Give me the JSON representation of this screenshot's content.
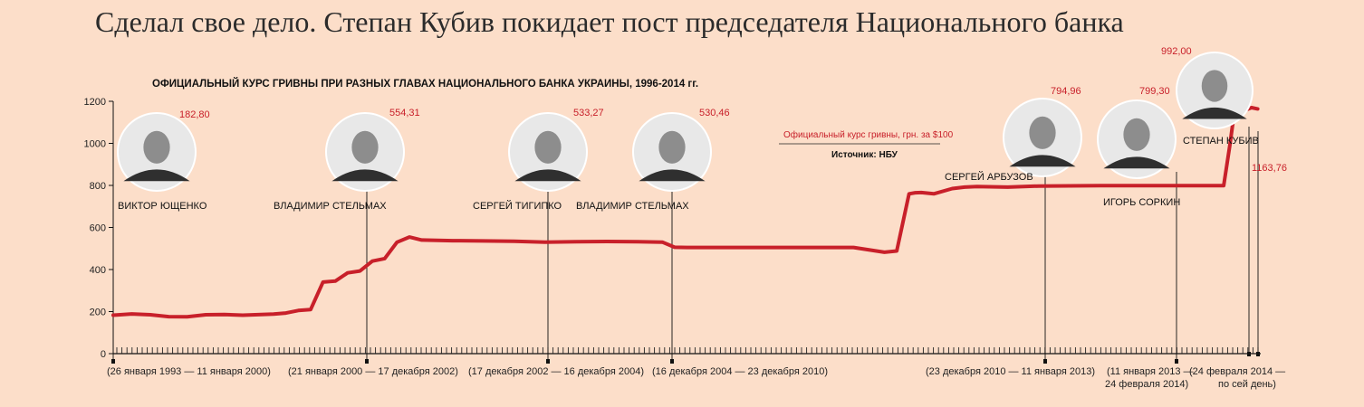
{
  "headline": "Сделал свое дело. Степан Кубив покидает пост председателя Национального банка",
  "colors": {
    "background": "#fcdec9",
    "line": "#c8202a",
    "text": "#222222",
    "axis": "#111111"
  },
  "chart_data": {
    "type": "line",
    "title": "ОФИЦИАЛЬНЫЙ КУРС ГРИВНЫ ПРИ РАЗНЫХ ГЛАВАХ НАЦИОНАЛЬНОГО БАНКА УКРАИНЫ, 1996-2014 гг.",
    "legend": "Официальный курс гривны, грн. за $100",
    "source": "Источник: НБУ",
    "ylim": [
      0,
      1200
    ],
    "yticks": [
      0,
      200,
      400,
      600,
      800,
      1000,
      1200
    ],
    "xlim": [
      1996.0,
      2014.6
    ],
    "grid": false,
    "series": [
      {
        "name": "Официальный курс гривны, грн. за $100",
        "x": [
          1996.0,
          1996.3,
          1996.6,
          1996.9,
          1997.2,
          1997.5,
          1997.8,
          1998.1,
          1998.4,
          1998.6,
          1998.8,
          1999.0,
          1999.2,
          1999.4,
          1999.6,
          1999.8,
          2000.0,
          2000.2,
          2000.4,
          2000.6,
          2000.8,
          2001.0,
          2001.5,
          2002.0,
          2002.5,
          2003.0,
          2003.5,
          2004.0,
          2004.5,
          2004.9,
          2005.1,
          2005.3,
          2006.0,
          2007.0,
          2008.0,
          2008.5,
          2008.7,
          2008.9,
          2009.0,
          2009.1,
          2009.3,
          2009.6,
          2009.8,
          2010.0,
          2010.5,
          2011.0,
          2012.0,
          2013.0,
          2014.0,
          2014.1,
          2014.15,
          2014.25,
          2014.35,
          2014.45,
          2014.55
        ],
        "y": [
          182.8,
          189,
          185,
          176,
          175,
          185,
          186,
          183,
          186,
          188,
          193,
          205,
          210,
          340,
          345,
          384,
          393,
          440,
          452,
          530,
          554.31,
          540,
          537,
          536,
          534,
          530,
          532,
          533.27,
          532,
          530.46,
          506,
          505,
          505,
          505,
          505,
          482,
          488,
          760,
          765,
          766,
          760,
          785,
          792,
          794.96,
          792,
          797,
          799,
          799.3,
          799.3,
          992,
          1100,
          1160,
          1158,
          1170,
          1163.76
        ]
      }
    ],
    "heads": [
      {
        "name": "ВИКТОР ЮЩЕНКО",
        "value": "182,80",
        "period": "(26 января 1993 — 11 января 2000)"
      },
      {
        "name": "ВЛАДИМИР СТЕЛЬМАХ",
        "value": "554,31",
        "period": "(21 января 2000 — 17 декабря 2002)"
      },
      {
        "name": "СЕРГЕЙ ТИГИПКО",
        "value": "533,27",
        "period": "(17 декабря 2002 — 16 декабря 2004)"
      },
      {
        "name": "ВЛАДИМИР СТЕЛЬМАХ",
        "value": "530,46",
        "period": "(16 декабря 2004 — 23 декабря 2010)"
      },
      {
        "name": "СЕРГЕЙ АРБУЗОВ",
        "value": "794,96",
        "period": "(23 декабря 2010 — 11 января 2013)"
      },
      {
        "name": "ИГОРЬ СОРКИН",
        "value": "799,30",
        "period_lines": [
          "(11 января 2013 —",
          "24 февраля 2014)"
        ]
      },
      {
        "name": "СТЕПАН КУБИВ",
        "value": "992,00",
        "current_value": "1163,76",
        "period_lines": [
          "(24 февраля 2014 —",
          "по сей день)"
        ]
      }
    ]
  }
}
